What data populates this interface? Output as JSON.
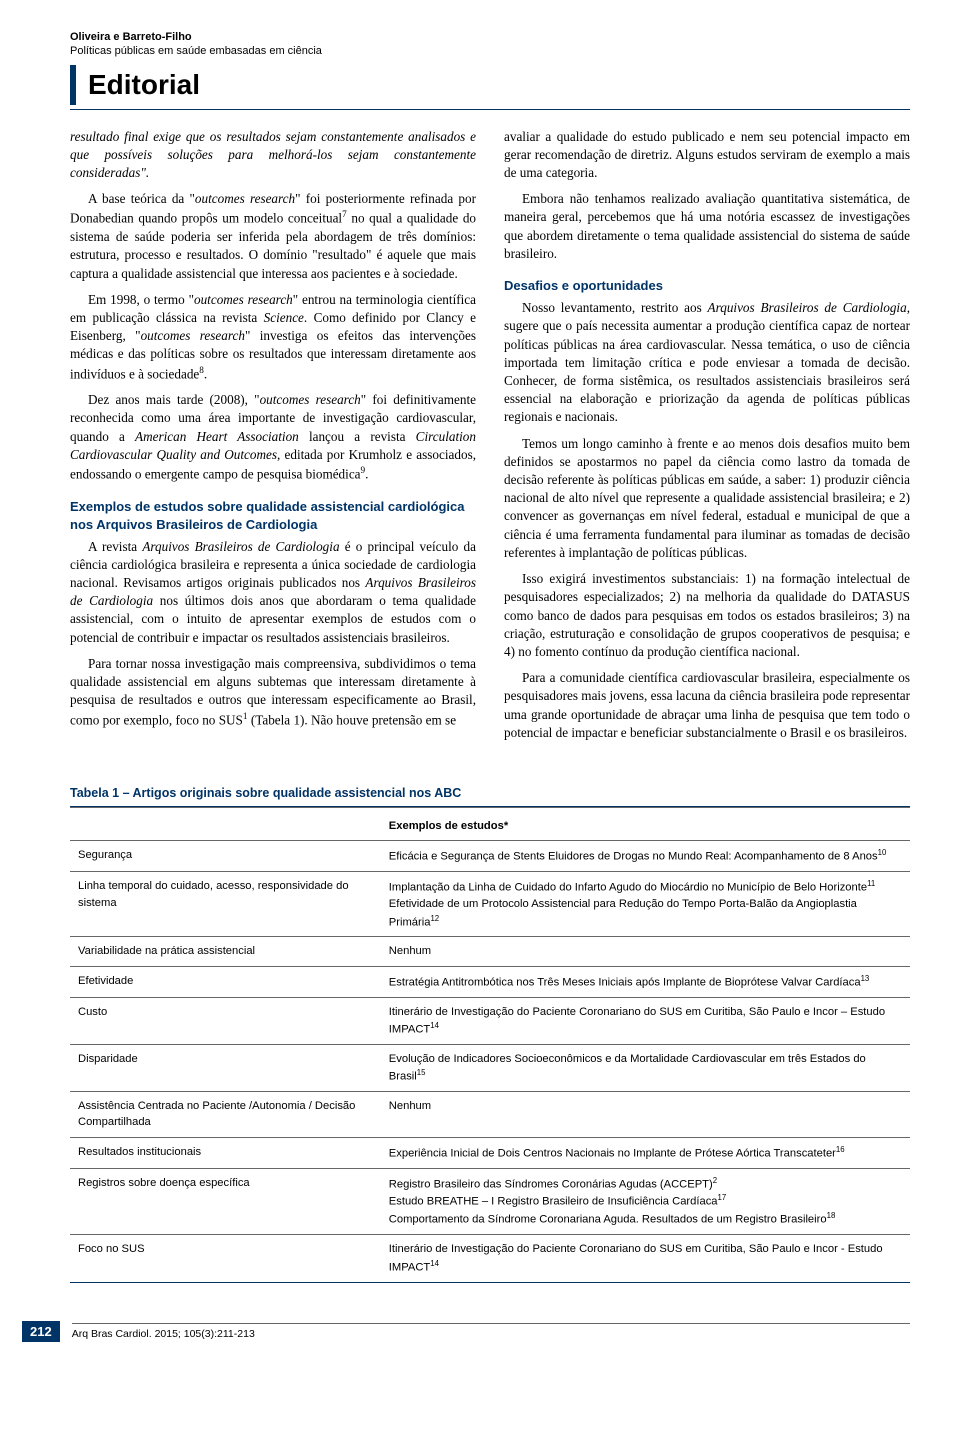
{
  "header": {
    "authors": "Oliveira e Barreto-Filho",
    "subtitle": "Políticas públicas em saúde embasadas em ciência",
    "editorial_label": "Editorial"
  },
  "colors": {
    "accent": "#003366",
    "text": "#000000",
    "bg": "#ffffff",
    "rule_light": "#666666"
  },
  "left_col": {
    "p1": "resultado final exige que os resultados sejam constantemente analisados e que possíveis soluções para melhorá-los sejam constantemente consideradas\".",
    "p2_a": "A base teórica da \"",
    "p2_i1": "outcomes research",
    "p2_b": "\" foi posteriormente refinada por Donabedian quando propôs um modelo conceitual",
    "p2_sup1": "7",
    "p2_c": " no qual a qualidade do sistema de saúde poderia ser inferida pela abordagem de três domínios: estrutura, processo e resultados. O domínio \"resultado\" é aquele que mais captura a qualidade assistencial que interessa aos pacientes e à sociedade.",
    "p3_a": "Em 1998, o termo \"",
    "p3_i1": "outcomes research",
    "p3_b": "\" entrou na terminologia científica em publicação clássica na revista ",
    "p3_i2": "Science",
    "p3_c": ". Como definido por Clancy e Eisenberg, \"",
    "p3_i3": "outcomes research",
    "p3_d": "\" investiga os efeitos das intervenções médicas e das políticas sobre os resultados que interessam diretamente aos indivíduos e à sociedade",
    "p3_sup1": "8",
    "p3_e": ".",
    "p4_a": "Dez anos mais tarde (2008), \"",
    "p4_i1": "outcomes research",
    "p4_b": "\" foi definitivamente reconhecida como uma área importante de investigação cardiovascular, quando a ",
    "p4_i2": "American Heart Association",
    "p4_c": " lançou a revista ",
    "p4_i3": "Circulation Cardiovascular Quality and Outcomes",
    "p4_d": ", editada por Krumholz e associados, endossando o emergente campo de pesquisa biomédica",
    "p4_sup1": "9",
    "p4_e": ".",
    "h1": "Exemplos de estudos sobre qualidade assistencial cardiológica nos Arquivos Brasileiros de Cardiologia",
    "p5_a": "A revista ",
    "p5_i1": "Arquivos Brasileiros de Cardiologia",
    "p5_b": " é o principal veículo da ciência cardiológica brasileira e representa a única sociedade de cardiologia nacional. Revisamos artigos originais publicados nos ",
    "p5_i2": "Arquivos Brasileiros de Cardiologia",
    "p5_c": " nos últimos dois anos que abordaram o tema qualidade assistencial, com o intuito de apresentar exemplos de estudos com o potencial de contribuir e impactar os resultados assistenciais brasileiros.",
    "p6_a": "Para tornar nossa investigação mais compreensiva, subdividimos o tema qualidade assistencial em alguns subtemas que interessam diretamente à pesquisa de resultados e outros que interessam especificamente ao Brasil, como por exemplo, foco no SUS",
    "p6_sup1": "1",
    "p6_b": " (Tabela 1). Não houve pretensão em se"
  },
  "right_col": {
    "p1": "avaliar a qualidade do estudo publicado e nem seu potencial impacto em gerar recomendação de diretriz. Alguns estudos serviram de exemplo a mais de uma categoria.",
    "p2": "Embora não tenhamos realizado avaliação quantitativa sistemática, de maneira geral, percebemos que há uma notória escassez de investigações que abordem diretamente o tema qualidade assistencial do sistema de saúde brasileiro.",
    "h1": "Desafios e oportunidades",
    "p3_a": "Nosso levantamento, restrito aos ",
    "p3_i1": "Arquivos Brasileiros de Cardiologia",
    "p3_b": ", sugere que o país necessita aumentar a produção científica capaz de nortear políticas públicas na área cardiovascular. Nessa temática, o uso de ciência importada tem limitação crítica e pode enviesar a tomada de decisão. Conhecer, de forma sistêmica, os resultados assistenciais brasileiros será essencial na elaboração e priorização da agenda de políticas públicas regionais e nacionais.",
    "p4": "Temos um longo caminho à frente e ao menos dois desafios muito bem definidos se apostarmos no papel da ciência como lastro da tomada de decisão referente às políticas públicas em saúde, a saber: 1) produzir ciência nacional de alto nível que represente a qualidade assistencial brasileira; e 2) convencer as governanças em nível federal, estadual e municipal de que a ciência é uma ferramenta fundamental para iluminar as tomadas de decisão referentes à implantação de políticas públicas.",
    "p5": "Isso exigirá investimentos substanciais: 1) na formação intelectual de pesquisadores especializados; 2) na melhoria da qualidade do DATASUS como banco de dados para pesquisas em todos os estados brasileiros; 3) na criação, estruturação e consolidação de grupos cooperativos de pesquisa; e 4) no fomento contínuo da produção científica nacional.",
    "p6": "Para a comunidade científica cardiovascular brasileira, especialmente os pesquisadores mais jovens, essa lacuna da ciência brasileira pode representar uma grande oportunidade de abraçar uma linha de pesquisa que tem todo o potencial de impactar e beneficiar substancialmente o Brasil e os brasileiros."
  },
  "table": {
    "title": "Tabela 1 – Artigos originais sobre qualidade assistencial nos ABC",
    "header_col2": "Exemplos de estudos*",
    "rows": [
      {
        "c0": "Segurança",
        "c1": "Eficácia e Segurança de Stents Eluidores de Drogas no Mundo Real: Acompanhamento de 8 Anos",
        "s1": "10"
      },
      {
        "c0": "Linha temporal do cuidado, acesso, responsividade do sistema",
        "c1": "Implantação da Linha de Cuidado do Infarto Agudo do Miocárdio no Município de Belo Horizonte",
        "s1": "11",
        "c1b": "Efetividade de um Protocolo Assistencial para Redução do Tempo Porta-Balão da Angioplastia Primária",
        "s1b": "12"
      },
      {
        "c0": "Variabilidade na prática assistencial",
        "c1": "Nenhum"
      },
      {
        "c0": "Efetividade",
        "c1": "Estratégia Antitrombótica nos Três Meses Iniciais após Implante de Bioprótese Valvar Cardíaca",
        "s1": "13"
      },
      {
        "c0": "Custo",
        "c1": "Itinerário de Investigação do Paciente Coronariano do SUS em Curitiba, São Paulo e Incor – Estudo IMPACT",
        "s1": "14"
      },
      {
        "c0": "Disparidade",
        "c1": "Evolução de Indicadores Socioeconômicos e da Mortalidade Cardiovascular em três Estados do Brasil",
        "s1": "15"
      },
      {
        "c0": "Assistência Centrada no Paciente /Autonomia / Decisão Compartilhada",
        "c1": "Nenhum"
      },
      {
        "c0": "Resultados institucionais",
        "c1": "Experiência Inicial de Dois Centros Nacionais no Implante de Prótese Aórtica Transcateter",
        "s1": "16"
      },
      {
        "c0": "Registros sobre doença específica",
        "c1": "Registro Brasileiro das Síndromes Coronárias Agudas (ACCEPT)",
        "s1": "2",
        "c1b": "Estudo BREATHE – I Registro Brasileiro de Insuficiência Cardíaca",
        "s1b": "17",
        "c1c": "Comportamento da Síndrome Coronariana Aguda. Resultados de um Registro Brasileiro",
        "s1c": "18"
      },
      {
        "c0": "Foco no SUS",
        "c1": "Itinerário de Investigação do Paciente Coronariano do SUS em Curitiba, São Paulo e Incor - Estudo IMPACT",
        "s1": "14"
      }
    ]
  },
  "footer": {
    "page_number": "212",
    "citation": "Arq Bras Cardiol. 2015; 105(3):211-213"
  }
}
